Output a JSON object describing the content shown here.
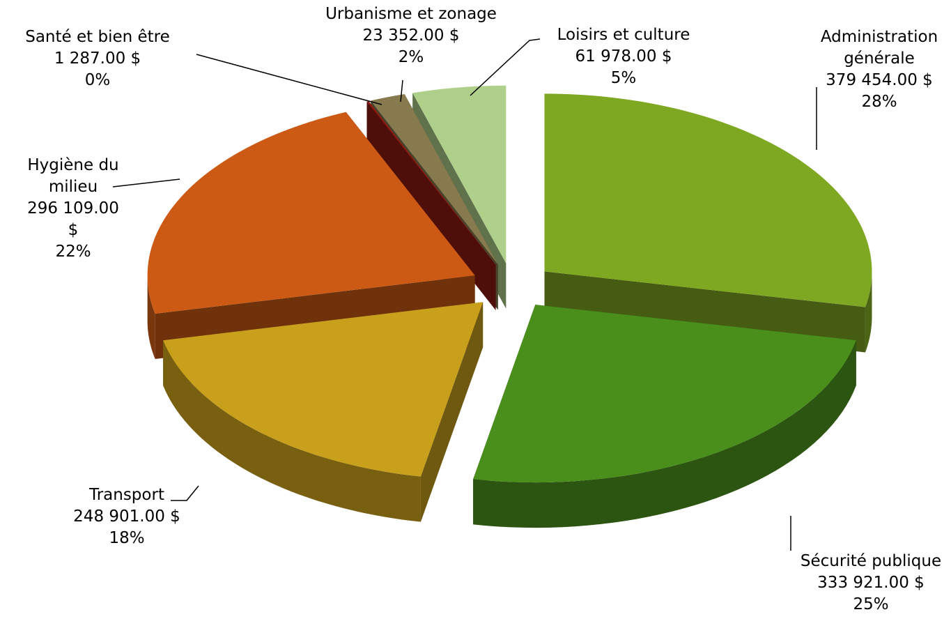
{
  "chart_data": {
    "type": "pie3d",
    "categories": [
      "Administration générale",
      "Sécurité publique",
      "Transport",
      "Hygiène du milieu",
      "Santé et bien être",
      "Urbanisme et zonage",
      "Loisirs et culture"
    ],
    "values": [
      379454,
      333921,
      248901,
      296109,
      1287,
      23352,
      61978
    ],
    "value_labels": [
      "379 454.00 $",
      "333 921.00 $",
      "248 901.00 $",
      "296 109.00 $",
      "1 287.00 $",
      "23 352.00 $",
      "61 978.00 $"
    ],
    "percent_labels": [
      "28%",
      "25%",
      "18%",
      "22%",
      "0%",
      "2%",
      "5%"
    ],
    "colors": [
      "#7fa822",
      "#4a8e1c",
      "#c9a01b",
      "#cc5a14",
      "#8e1a10",
      "#867a4e",
      "#aed08a"
    ]
  }
}
